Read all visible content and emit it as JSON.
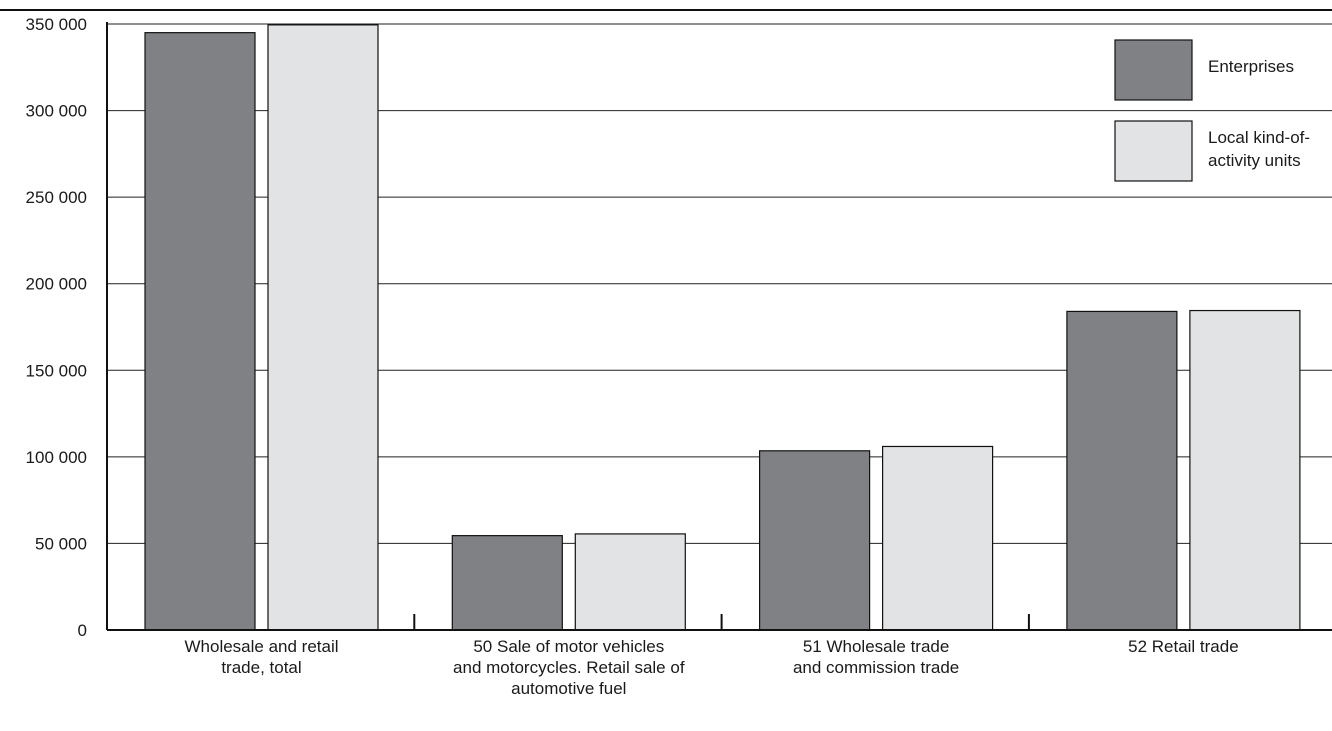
{
  "chart_data": {
    "type": "bar",
    "title": "",
    "xlabel": "",
    "ylabel": "",
    "ylim": [
      0,
      350000
    ],
    "yticks": [
      0,
      50000,
      100000,
      150000,
      200000,
      250000,
      300000,
      350000
    ],
    "ytick_labels": [
      "0",
      "50 000",
      "100 000",
      "150 000",
      "200 000",
      "250 000",
      "300 000",
      "350 000"
    ],
    "grid": true,
    "legend_position": "top-right",
    "categories": [
      [
        "Wholesale and retail",
        "trade, total"
      ],
      [
        "50 Sale of motor vehicles",
        "and motorcycles. Retail sale of",
        "automotive fuel"
      ],
      [
        "51 Wholesale trade",
        "and commission trade"
      ],
      [
        "52 Retail trade"
      ]
    ],
    "series": [
      {
        "name": "Enterprises",
        "color": "#808184",
        "values": [
          345000,
          54500,
          103500,
          184000
        ]
      },
      {
        "name": [
          "Local kind-of-",
          "activity units"
        ],
        "color": "#e2e3e4",
        "values": [
          349500,
          55500,
          106000,
          184500
        ]
      }
    ]
  }
}
